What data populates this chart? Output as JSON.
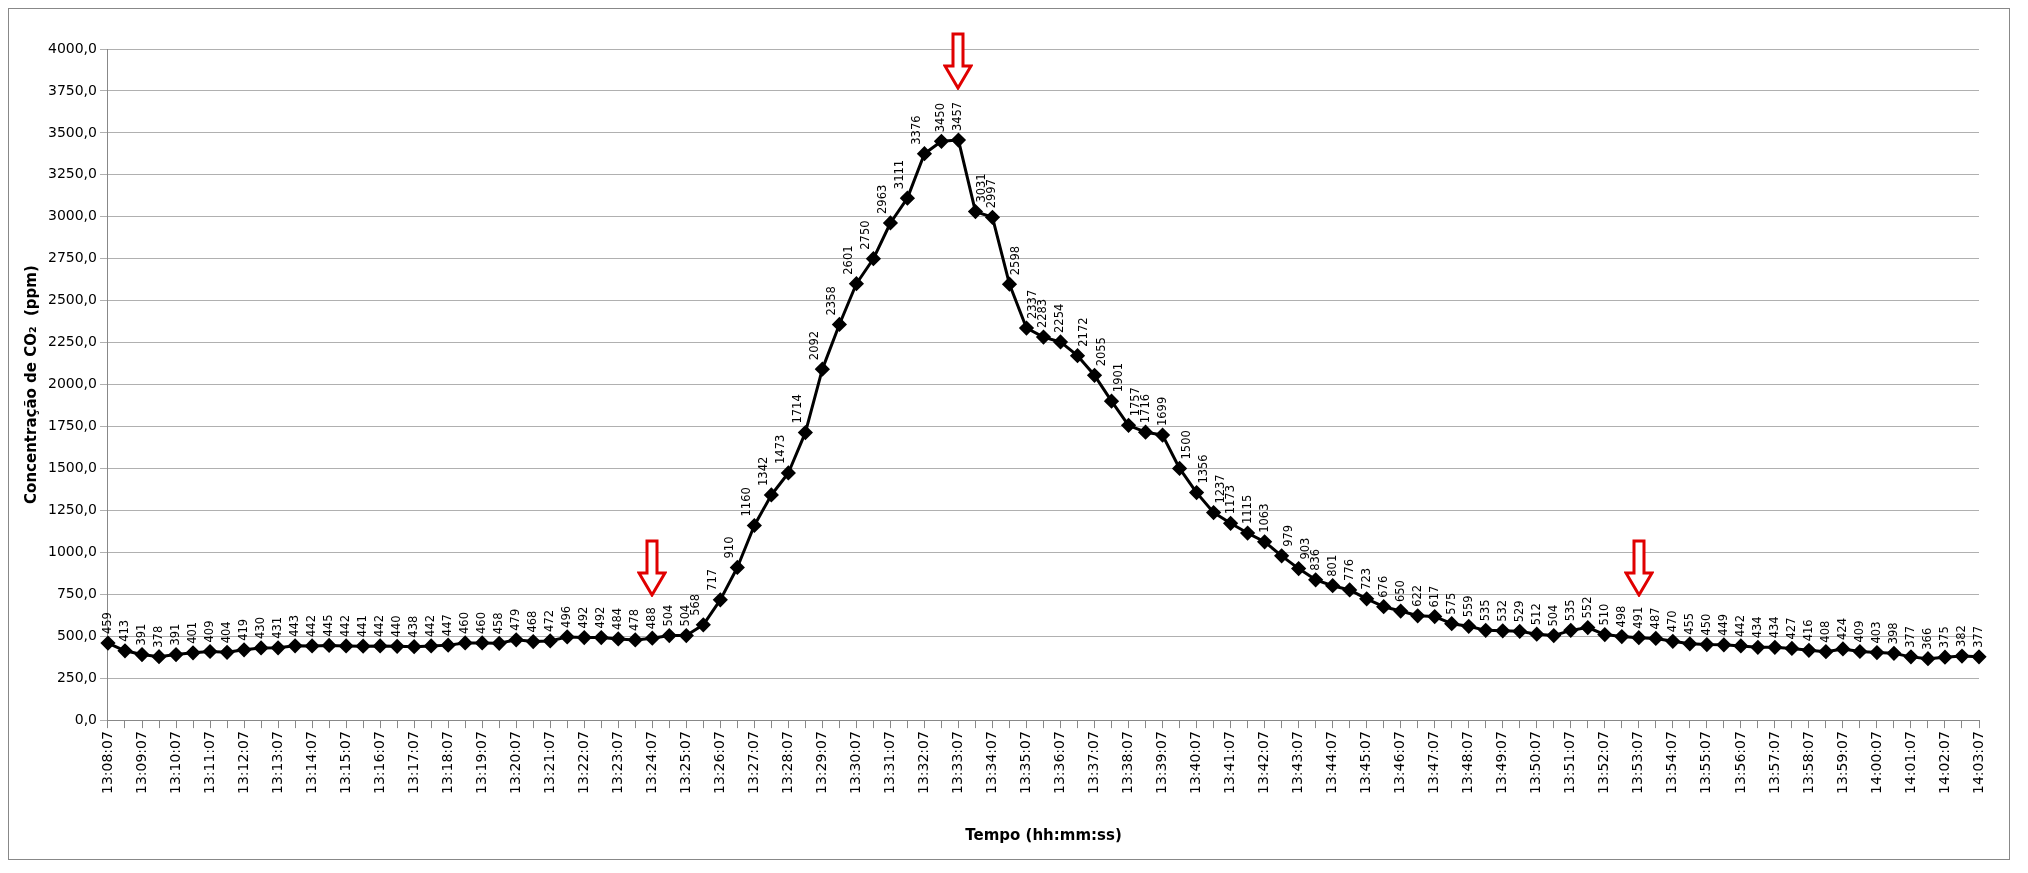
{
  "chart_data": {
    "type": "line",
    "xlabel": "Tempo (hh:mm:ss)",
    "ylabel": "Concentração de CO₂  (ppm)",
    "categories": [
      "13:08:07",
      null,
      "13:09:07",
      null,
      "13:10:07",
      null,
      "13:11:07",
      null,
      "13:12:07",
      null,
      "13:13:07",
      null,
      "13:14:07",
      null,
      "13:15:07",
      null,
      "13:16:07",
      null,
      "13:17:07",
      null,
      "13:18:07",
      null,
      "13:19:07",
      null,
      "13:20:07",
      null,
      "13:21:07",
      null,
      "13:22:07",
      null,
      "13:23:07",
      null,
      "13:24:07",
      null,
      "13:25:07",
      null,
      "13:26:07",
      null,
      "13:27:07",
      null,
      "13:28:07",
      null,
      "13:29:07",
      null,
      "13:30:07",
      null,
      "13:31:07",
      null,
      "13:32:07",
      null,
      "13:33:07",
      null,
      "13:34:07",
      null,
      "13:35:07",
      null,
      "13:36:07",
      null,
      "13:37:07",
      null,
      "13:38:07",
      null,
      "13:39:07",
      null,
      "13:40:07",
      null,
      "13:41:07",
      null,
      "13:42:07",
      null,
      "13:43:07",
      null,
      "13:44:07",
      null,
      "13:45:07",
      null,
      "13:46:07",
      null,
      "13:47:07",
      null,
      "13:48:07",
      null,
      "13:49:07",
      null,
      "13:50:07",
      null,
      "13:51:07",
      null,
      "13:52:07",
      null,
      "13:53:07",
      null,
      "13:54:07",
      null,
      "13:55:07",
      null,
      "13:56:07",
      null,
      "13:57:07",
      null,
      "13:58:07",
      null,
      "13:59:07",
      null,
      "14:00:07",
      null,
      "14:01:07",
      null,
      "14:02:07",
      null,
      "14:03:07"
    ],
    "series": [
      {
        "color": "#000000",
        "values": [
          459,
          413,
          391,
          378,
          391,
          401,
          409,
          404,
          419,
          430,
          431,
          443,
          442,
          445,
          442,
          441,
          442,
          440,
          438,
          442,
          447,
          460,
          460,
          458,
          479,
          468,
          472,
          496,
          492,
          492,
          484,
          478,
          488,
          504,
          504,
          568,
          717,
          910,
          1160,
          1342,
          1473,
          1714,
          2092,
          2358,
          2601,
          2750,
          2963,
          3111,
          3376,
          3450,
          3457,
          3031,
          2997,
          2598,
          2337,
          2283,
          2254,
          2172,
          2055,
          1901,
          1757,
          1716,
          1699,
          1500,
          1356,
          1237,
          1173,
          1115,
          1063,
          979,
          903,
          836,
          801,
          776,
          723,
          676,
          650,
          622,
          617,
          575,
          559,
          535,
          532,
          529,
          512,
          504,
          535,
          552,
          510,
          498,
          491,
          487,
          470,
          455,
          450,
          449,
          442,
          434,
          434,
          427,
          416,
          408,
          424,
          409,
          403,
          398,
          377,
          366,
          375,
          382,
          377
        ]
      }
    ],
    "ylim": [
      0,
      4000
    ],
    "yticks": [
      {
        "value": 0,
        "label": "0,0"
      },
      {
        "value": 250,
        "label": "250,0"
      },
      {
        "value": 500,
        "label": "500,0"
      },
      {
        "value": 750,
        "label": "750,0"
      },
      {
        "value": 1000,
        "label": "1000,0"
      },
      {
        "value": 1250,
        "label": "1250,0"
      },
      {
        "value": 1500,
        "label": "1500,0"
      },
      {
        "value": 1750,
        "label": "1750,0"
      },
      {
        "value": 2000,
        "label": "2000,0"
      },
      {
        "value": 2250,
        "label": "2250,0"
      },
      {
        "value": 2500,
        "label": "2500,0"
      },
      {
        "value": 2750,
        "label": "2750,0"
      },
      {
        "value": 3000,
        "label": "3000,0"
      },
      {
        "value": 3250,
        "label": "3250,0"
      },
      {
        "value": 3500,
        "label": "3500,0"
      },
      {
        "value": 3750,
        "label": "3750,0"
      },
      {
        "value": 4000,
        "label": "4000,0"
      }
    ],
    "grid": "y",
    "marker": "diamond",
    "line_style": "solid",
    "data_labels": true
  }
}
